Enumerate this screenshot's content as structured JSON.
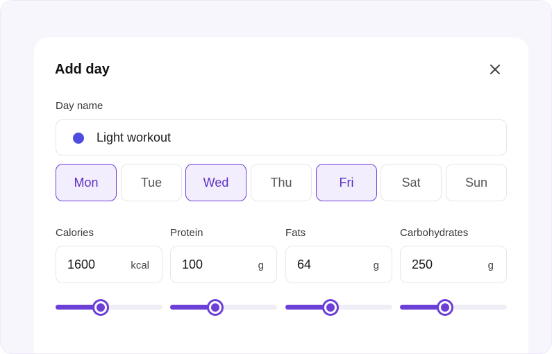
{
  "dialog": {
    "title": "Add day",
    "close_icon": "close-icon"
  },
  "day_name": {
    "label": "Day name",
    "value": "Light workout",
    "color": "#4f4de0"
  },
  "days": [
    {
      "label": "Mon",
      "selected": true
    },
    {
      "label": "Tue",
      "selected": false
    },
    {
      "label": "Wed",
      "selected": true
    },
    {
      "label": "Thu",
      "selected": false
    },
    {
      "label": "Fri",
      "selected": true
    },
    {
      "label": "Sat",
      "selected": false
    },
    {
      "label": "Sun",
      "selected": false
    }
  ],
  "nutrients": [
    {
      "label": "Calories",
      "value": "1600",
      "unit": "kcal",
      "slider_fraction": 0.42
    },
    {
      "label": "Protein",
      "value": "100",
      "unit": "g",
      "slider_fraction": 0.42
    },
    {
      "label": "Fats",
      "value": "64",
      "unit": "g",
      "slider_fraction": 0.42
    },
    {
      "label": "Carbohydrates",
      "value": "250",
      "unit": "g",
      "slider_fraction": 0.42
    }
  ],
  "colors": {
    "accent": "#6c3fd6",
    "selected_bg": "#f3eefd",
    "background": "#f8f6fd"
  }
}
